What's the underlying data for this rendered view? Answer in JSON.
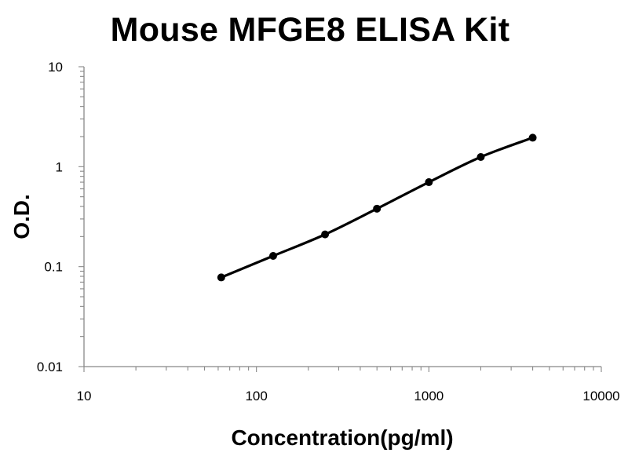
{
  "chart_data": {
    "type": "scatter",
    "title": "Mouse MFGE8 ELISA Kit",
    "xlabel": "Concentration(pg/ml)",
    "ylabel": "O.D.",
    "x_scale": "log",
    "y_scale": "log",
    "xlim": [
      10,
      10000
    ],
    "ylim": [
      0.01,
      10
    ],
    "x_tick_labels": [
      "10",
      "100",
      "1000",
      "10000"
    ],
    "y_tick_labels": [
      "0.01",
      "0.1",
      "1",
      "10"
    ],
    "grid": false,
    "legend": "none",
    "series": [
      {
        "x": [
          62.5,
          125,
          250,
          500,
          1000,
          2000,
          4000
        ],
        "y": [
          0.078,
          0.128,
          0.21,
          0.38,
          0.7,
          1.25,
          1.95
        ],
        "fit_curve": true
      }
    ],
    "colors": {
      "series": "#000000",
      "axis": "#888888"
    }
  }
}
